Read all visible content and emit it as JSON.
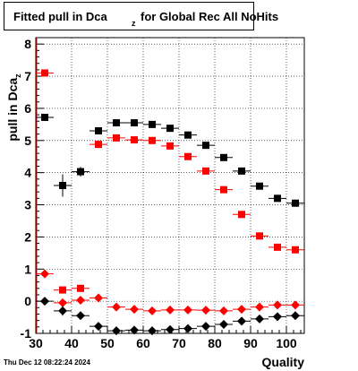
{
  "title": {
    "main": "Fitted pull in Dca",
    "subscript": "z",
    "suffix": "for Global Rec All NoHits"
  },
  "timestamp": "Thu Dec 12 08:22:24 2024",
  "chart_data": {
    "type": "scatter",
    "xlabel": "Quality",
    "ylabel": "pull in Dca",
    "ylabel_subscript": "z",
    "xlim": [
      30,
      105
    ],
    "ylim": [
      -1,
      8.2
    ],
    "xticks": [
      30,
      40,
      50,
      60,
      70,
      80,
      90,
      100
    ],
    "yticks": [
      -1,
      0,
      1,
      2,
      3,
      4,
      5,
      6,
      7,
      8
    ],
    "grid": true,
    "colors": {
      "black": "#000000",
      "red": "#ff0000"
    },
    "series": [
      {
        "marker": "square",
        "color": "#000000",
        "points": [
          {
            "x": 32.5,
            "y": 5.72,
            "yerr": 0.0
          },
          {
            "x": 37.5,
            "y": 3.6,
            "yerr": 0.35
          },
          {
            "x": 42.5,
            "y": 4.03,
            "yerr": 0.15
          },
          {
            "x": 47.5,
            "y": 5.3,
            "yerr": 0.08
          },
          {
            "x": 52.5,
            "y": 5.55,
            "yerr": 0.06
          },
          {
            "x": 57.5,
            "y": 5.55,
            "yerr": 0.06
          },
          {
            "x": 62.5,
            "y": 5.5,
            "yerr": 0.05
          },
          {
            "x": 67.5,
            "y": 5.38,
            "yerr": 0.05
          },
          {
            "x": 72.5,
            "y": 5.17,
            "yerr": 0.05
          },
          {
            "x": 77.5,
            "y": 4.85,
            "yerr": 0.05
          },
          {
            "x": 82.5,
            "y": 4.47,
            "yerr": 0.05
          },
          {
            "x": 87.5,
            "y": 4.05,
            "yerr": 0.05
          },
          {
            "x": 92.5,
            "y": 3.58,
            "yerr": 0.05
          },
          {
            "x": 97.5,
            "y": 3.2,
            "yerr": 0.05
          },
          {
            "x": 102.5,
            "y": 3.05,
            "yerr": 0.05
          }
        ]
      },
      {
        "marker": "square",
        "color": "#ff0000",
        "points": [
          {
            "x": 32.5,
            "y": 7.1,
            "yerr": 0.0
          },
          {
            "x": 37.5,
            "y": 0.35,
            "yerr": 0.1
          },
          {
            "x": 42.5,
            "y": 0.4,
            "yerr": 0.1
          },
          {
            "x": 47.5,
            "y": 4.88,
            "yerr": 0.12
          },
          {
            "x": 52.5,
            "y": 5.08,
            "yerr": 0.07
          },
          {
            "x": 57.5,
            "y": 5.02,
            "yerr": 0.06
          },
          {
            "x": 62.5,
            "y": 5.0,
            "yerr": 0.05
          },
          {
            "x": 67.5,
            "y": 4.83,
            "yerr": 0.05
          },
          {
            "x": 72.5,
            "y": 4.5,
            "yerr": 0.05
          },
          {
            "x": 77.5,
            "y": 4.05,
            "yerr": 0.05
          },
          {
            "x": 82.5,
            "y": 3.47,
            "yerr": 0.05
          },
          {
            "x": 87.5,
            "y": 2.7,
            "yerr": 0.05
          },
          {
            "x": 92.5,
            "y": 2.03,
            "yerr": 0.05
          },
          {
            "x": 97.5,
            "y": 1.68,
            "yerr": 0.05
          },
          {
            "x": 102.5,
            "y": 1.6,
            "yerr": 0.05
          }
        ]
      },
      {
        "marker": "diamond",
        "color": "#ff0000",
        "points": [
          {
            "x": 32.5,
            "y": 0.85,
            "yerr": 0.0
          },
          {
            "x": 37.5,
            "y": -0.05,
            "yerr": 0.08
          },
          {
            "x": 42.5,
            "y": 0.03,
            "yerr": 0.05
          },
          {
            "x": 47.5,
            "y": 0.1,
            "yerr": 0.04
          },
          {
            "x": 52.5,
            "y": -0.18,
            "yerr": 0.03
          },
          {
            "x": 57.5,
            "y": -0.25,
            "yerr": 0.03
          },
          {
            "x": 62.5,
            "y": -0.3,
            "yerr": 0.03
          },
          {
            "x": 67.5,
            "y": -0.27,
            "yerr": 0.03
          },
          {
            "x": 72.5,
            "y": -0.27,
            "yerr": 0.03
          },
          {
            "x": 77.5,
            "y": -0.28,
            "yerr": 0.03
          },
          {
            "x": 82.5,
            "y": -0.3,
            "yerr": 0.03
          },
          {
            "x": 87.5,
            "y": -0.25,
            "yerr": 0.03
          },
          {
            "x": 92.5,
            "y": -0.18,
            "yerr": 0.03
          },
          {
            "x": 97.5,
            "y": -0.12,
            "yerr": 0.03
          },
          {
            "x": 102.5,
            "y": -0.12,
            "yerr": 0.03
          }
        ]
      },
      {
        "marker": "diamond",
        "color": "#000000",
        "points": [
          {
            "x": 32.5,
            "y": 0.0,
            "yerr": 0.0
          },
          {
            "x": 37.5,
            "y": -0.3,
            "yerr": 0.15
          },
          {
            "x": 42.5,
            "y": -0.45,
            "yerr": 0.08
          },
          {
            "x": 47.5,
            "y": -0.78,
            "yerr": 0.05
          },
          {
            "x": 52.5,
            "y": -0.92,
            "yerr": 0.04
          },
          {
            "x": 57.5,
            "y": -0.9,
            "yerr": 0.04
          },
          {
            "x": 62.5,
            "y": -0.92,
            "yerr": 0.04
          },
          {
            "x": 67.5,
            "y": -0.88,
            "yerr": 0.04
          },
          {
            "x": 72.5,
            "y": -0.85,
            "yerr": 0.04
          },
          {
            "x": 77.5,
            "y": -0.78,
            "yerr": 0.04
          },
          {
            "x": 82.5,
            "y": -0.72,
            "yerr": 0.04
          },
          {
            "x": 87.5,
            "y": -0.62,
            "yerr": 0.04
          },
          {
            "x": 92.5,
            "y": -0.55,
            "yerr": 0.04
          },
          {
            "x": 97.5,
            "y": -0.48,
            "yerr": 0.04
          },
          {
            "x": 102.5,
            "y": -0.45,
            "yerr": 0.04
          }
        ]
      }
    ]
  }
}
